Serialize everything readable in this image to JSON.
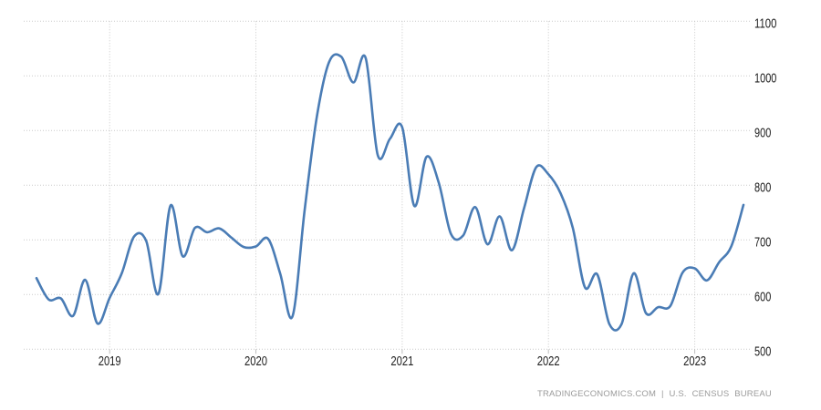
{
  "chart_data": {
    "type": "line",
    "x_monthly": [
      "2018-07",
      "2018-08",
      "2018-09",
      "2018-10",
      "2018-11",
      "2018-12",
      "2019-01",
      "2019-02",
      "2019-03",
      "2019-04",
      "2019-05",
      "2019-06",
      "2019-07",
      "2019-08",
      "2019-09",
      "2019-10",
      "2019-11",
      "2019-12",
      "2020-01",
      "2020-02",
      "2020-03",
      "2020-04",
      "2020-05",
      "2020-06",
      "2020-07",
      "2020-08",
      "2020-09",
      "2020-10",
      "2020-11",
      "2020-12",
      "2021-01",
      "2021-02",
      "2021-03",
      "2021-04",
      "2021-05",
      "2021-06",
      "2021-07",
      "2021-08",
      "2021-09",
      "2021-10",
      "2021-11",
      "2021-12",
      "2022-01",
      "2022-02",
      "2022-03",
      "2022-04",
      "2022-05",
      "2022-06",
      "2022-07",
      "2022-08",
      "2022-09",
      "2022-10",
      "2022-11",
      "2022-12",
      "2023-01",
      "2023-02",
      "2023-03",
      "2023-04",
      "2023-05"
    ],
    "values": [
      630,
      591,
      593,
      561,
      627,
      547,
      594,
      639,
      706,
      698,
      601,
      763,
      670,
      722,
      714,
      721,
      704,
      687,
      688,
      702,
      638,
      560,
      755,
      925,
      1025,
      1035,
      988,
      1033,
      855,
      885,
      906,
      762,
      852,
      805,
      711,
      708,
      760,
      692,
      743,
      681,
      758,
      833,
      820,
      785,
      722,
      613,
      637,
      546,
      546,
      639,
      566,
      577,
      579,
      640,
      648,
      626,
      659,
      688,
      764
    ],
    "x_tick_labels": [
      "2019",
      "2020",
      "2021",
      "2022",
      "2023"
    ],
    "y_ticks": [
      500,
      600,
      700,
      800,
      900,
      1000,
      1100
    ],
    "ylim": [
      500,
      1100
    ],
    "grid": true,
    "legend": "none",
    "line_color": "#4a7cb5",
    "grid_color": "#c9c9c9",
    "tick_color": "#bfbfbf",
    "tick_label_color": "#222222",
    "attribution_color": "#9b9b9b"
  },
  "attribution": {
    "text": "TRADINGECONOMICS.COM | U.S. CENSUS BUREAU"
  }
}
